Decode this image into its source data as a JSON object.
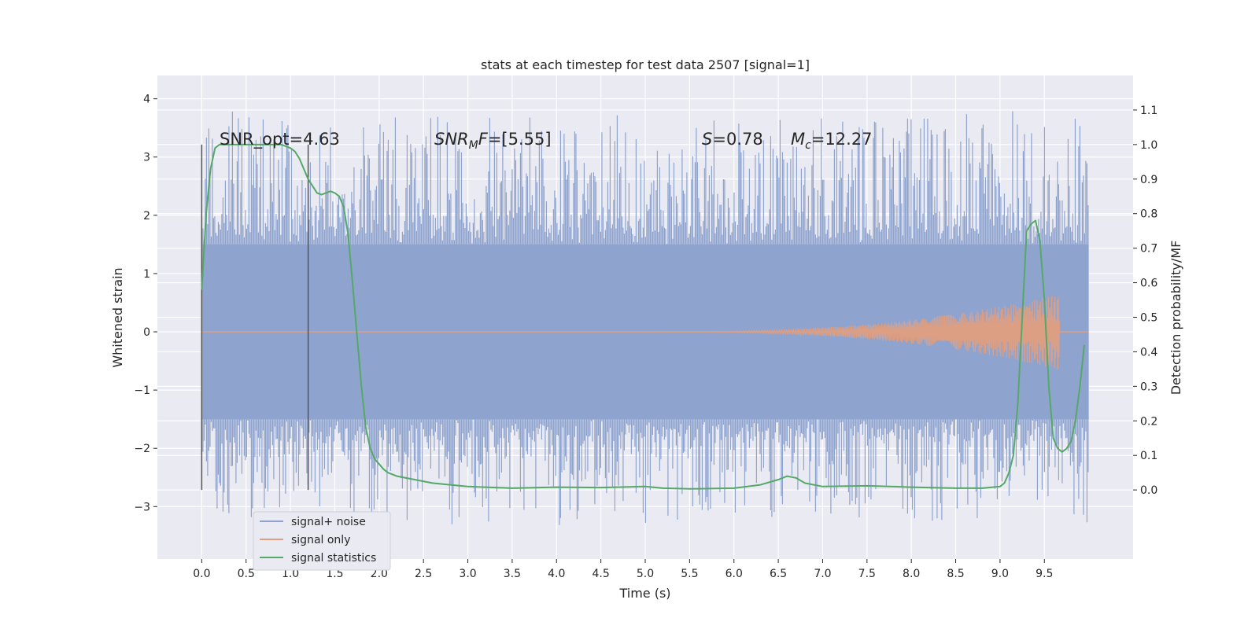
{
  "chart_data": {
    "type": "line",
    "title": "stats at each timestep for test data 2507 [signal=1]",
    "xlabel": "Time (s)",
    "ylabel": "Whitened strain",
    "y2label": "Detection probability/MF",
    "xlim": [
      -0.5,
      10.5
    ],
    "ylim": [
      -3.9,
      4.4
    ],
    "y2lim": [
      -0.2,
      1.2
    ],
    "x_ticks": [
      "0.0",
      "0.5",
      "1.0",
      "1.5",
      "2.0",
      "2.5",
      "3.0",
      "3.5",
      "4.0",
      "4.5",
      "5.0",
      "5.5",
      "6.0",
      "6.5",
      "7.0",
      "7.5",
      "8.0",
      "8.5",
      "9.0",
      "9.5"
    ],
    "y_ticks": [
      "4",
      "3",
      "2",
      "1",
      "0",
      "−1",
      "−2",
      "−3"
    ],
    "y2_ticks": [
      "1.1",
      "1.0",
      "0.9",
      "0.8",
      "0.7",
      "0.6",
      "0.5",
      "0.4",
      "0.3",
      "0.2",
      "0.1",
      "0.0"
    ],
    "grid": true,
    "legend_position": "lower-left",
    "vertical_lines_x": [
      0.0,
      1.2
    ],
    "noise_envelope": {
      "x_range": [
        0.0,
        10.0
      ],
      "core_min": -1.5,
      "core_max": 1.5,
      "peak_min": -3.5,
      "peak_max": 4.05
    },
    "signal_chirp": {
      "x_range": [
        5.0,
        9.67
      ],
      "final_amplitude": 0.65
    },
    "annotations": {
      "snr_opt": "SNR_opt=4.63",
      "snr_mf_name": "SNR",
      "snr_mf_sub": "M",
      "snr_mf_rest": "F=[5.55]",
      "s_name": "S",
      "s_rest": "=0.78",
      "mc_name": "M",
      "mc_sub": "c",
      "mc_rest": "=12.27"
    },
    "series": [
      {
        "name": "signal+ noise",
        "color": "#8fa3cf"
      },
      {
        "name": "signal only",
        "color": "#dd9f83"
      },
      {
        "name": "signal statistics",
        "color": "#55a868",
        "axis": "right",
        "x": [
          0.0,
          0.05,
          0.1,
          0.15,
          0.2,
          0.3,
          0.4,
          0.6,
          0.8,
          0.9,
          1.0,
          1.05,
          1.1,
          1.15,
          1.2,
          1.3,
          1.35,
          1.4,
          1.45,
          1.5,
          1.55,
          1.6,
          1.65,
          1.7,
          1.75,
          1.8,
          1.85,
          1.9,
          1.95,
          2.0,
          2.05,
          2.1,
          2.2,
          2.4,
          2.6,
          2.8,
          3.0,
          3.5,
          4.0,
          4.5,
          5.0,
          5.2,
          5.5,
          6.0,
          6.3,
          6.5,
          6.6,
          6.7,
          6.8,
          7.0,
          7.5,
          8.0,
          8.5,
          8.8,
          9.0,
          9.05,
          9.1,
          9.15,
          9.2,
          9.25,
          9.3,
          9.35,
          9.4,
          9.45,
          9.5,
          9.55,
          9.6,
          9.65,
          9.7,
          9.75,
          9.8,
          9.85,
          9.9,
          9.95
        ],
        "values": [
          0.58,
          0.8,
          0.93,
          0.99,
          1.0,
          1.0,
          1.0,
          1.0,
          1.0,
          1.0,
          0.99,
          0.98,
          0.96,
          0.93,
          0.9,
          0.86,
          0.855,
          0.86,
          0.865,
          0.86,
          0.85,
          0.82,
          0.74,
          0.6,
          0.45,
          0.3,
          0.18,
          0.12,
          0.09,
          0.075,
          0.06,
          0.05,
          0.04,
          0.03,
          0.02,
          0.015,
          0.01,
          0.005,
          0.008,
          0.007,
          0.01,
          0.005,
          0.003,
          0.005,
          0.015,
          0.03,
          0.04,
          0.035,
          0.02,
          0.01,
          0.012,
          0.008,
          0.005,
          0.005,
          0.01,
          0.02,
          0.05,
          0.1,
          0.25,
          0.5,
          0.75,
          0.77,
          0.78,
          0.72,
          0.55,
          0.3,
          0.15,
          0.12,
          0.11,
          0.12,
          0.14,
          0.2,
          0.3,
          0.42
        ]
      }
    ]
  }
}
